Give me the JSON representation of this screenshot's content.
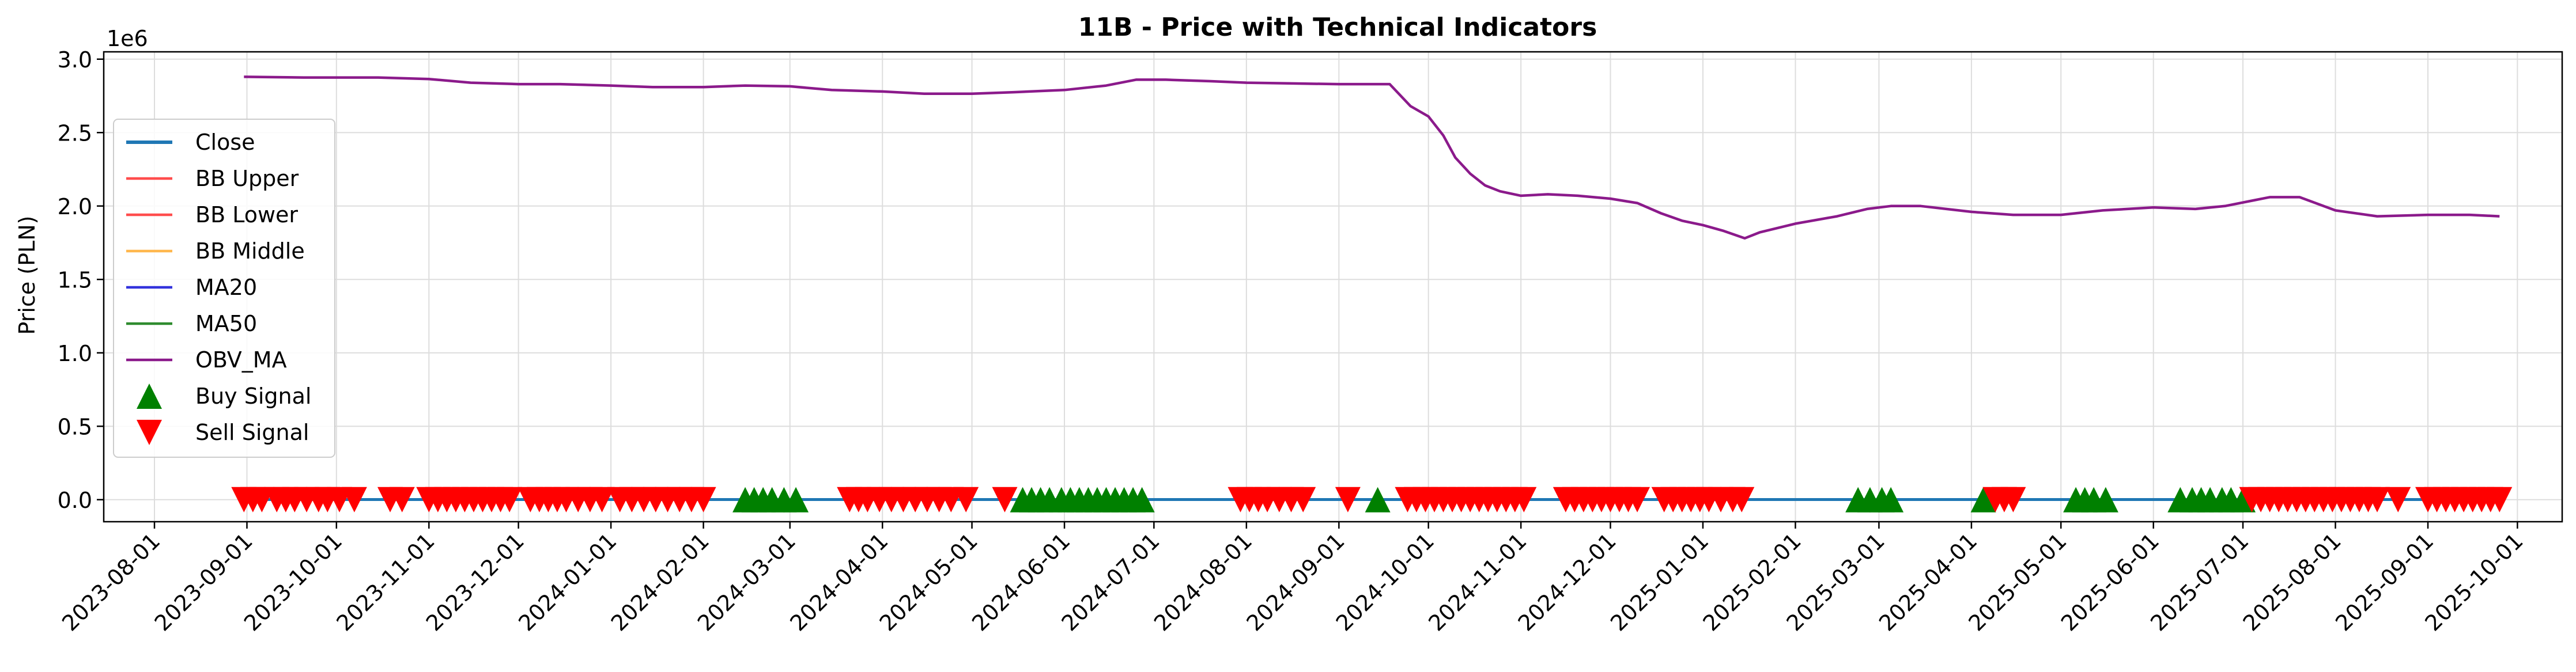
{
  "chart_data": {
    "type": "line",
    "title": "11B - Price with Technical Indicators",
    "ylabel": "Price (PLN)",
    "xlabel": "",
    "y_offset_label": "1e6",
    "ylim": [
      -0.15,
      3.05
    ],
    "xlim": [
      "2023-07-15",
      "2025-10-16"
    ],
    "y_ticks": [
      0.0,
      0.5,
      1.0,
      1.5,
      2.0,
      2.5,
      3.0
    ],
    "y_tick_labels": [
      "0.0",
      "0.5",
      "1.0",
      "1.5",
      "2.0",
      "2.5",
      "3.0"
    ],
    "x_tick_labels": [
      "2023-08-01",
      "2023-09-01",
      "2023-10-01",
      "2023-11-01",
      "2023-12-01",
      "2024-01-01",
      "2024-02-01",
      "2024-03-01",
      "2024-04-01",
      "2024-05-01",
      "2024-06-01",
      "2024-07-01",
      "2024-08-01",
      "2024-09-01",
      "2024-10-01",
      "2024-11-01",
      "2024-12-01",
      "2025-01-01",
      "2025-02-01",
      "2025-03-01",
      "2025-04-01",
      "2025-05-01",
      "2025-06-01",
      "2025-07-01",
      "2025-08-01",
      "2025-09-01",
      "2025-10-01"
    ],
    "grid": true,
    "legend_position": "center-left",
    "legend": [
      {
        "name": "Close",
        "color": "#1f77b4",
        "kind": "line"
      },
      {
        "name": "BB Upper",
        "color": "#ff4d4d",
        "kind": "line"
      },
      {
        "name": "BB Lower",
        "color": "#ff4d4d",
        "kind": "line"
      },
      {
        "name": "BB Middle",
        "color": "#ffb74d",
        "kind": "line"
      },
      {
        "name": "MA20",
        "color": "#3333dd",
        "kind": "line"
      },
      {
        "name": "MA50",
        "color": "#2e8b2e",
        "kind": "line"
      },
      {
        "name": "OBV_MA",
        "color": "#8b1a8b",
        "kind": "line"
      },
      {
        "name": "Buy Signal",
        "color": "#008000",
        "kind": "triangle-up"
      },
      {
        "name": "Sell Signal",
        "color": "#ff0000",
        "kind": "triangle-down"
      }
    ],
    "price_lines": {
      "x": [
        "2023-09-01",
        "2025-09-25"
      ],
      "y": [
        0.0012,
        0.0012
      ],
      "colors": [
        "#2e8b2e",
        "#1f77b4"
      ]
    },
    "series": [
      {
        "name": "OBV_MA",
        "color": "#8b1a8b",
        "x": [
          "2023-08-31",
          "2023-09-20",
          "2023-10-15",
          "2023-11-01",
          "2023-11-15",
          "2023-12-01",
          "2023-12-15",
          "2024-01-01",
          "2024-01-15",
          "2024-02-01",
          "2024-02-15",
          "2024-03-01",
          "2024-03-15",
          "2024-04-01",
          "2024-04-15",
          "2024-05-01",
          "2024-05-15",
          "2024-06-01",
          "2024-06-15",
          "2024-06-25",
          "2024-07-05",
          "2024-07-20",
          "2024-08-01",
          "2024-08-15",
          "2024-09-01",
          "2024-09-18",
          "2024-09-25",
          "2024-10-01",
          "2024-10-06",
          "2024-10-10",
          "2024-10-15",
          "2024-10-20",
          "2024-10-25",
          "2024-11-01",
          "2024-11-10",
          "2024-11-20",
          "2024-12-01",
          "2024-12-10",
          "2024-12-18",
          "2024-12-25",
          "2025-01-01",
          "2025-01-08",
          "2025-01-15",
          "2025-01-20",
          "2025-02-01",
          "2025-02-15",
          "2025-02-25",
          "2025-03-05",
          "2025-03-15",
          "2025-04-01",
          "2025-04-15",
          "2025-05-01",
          "2025-05-15",
          "2025-06-01",
          "2025-06-15",
          "2025-06-25",
          "2025-07-05",
          "2025-07-10",
          "2025-07-20",
          "2025-08-01",
          "2025-08-15",
          "2025-09-01",
          "2025-09-15",
          "2025-09-25"
        ],
        "y": [
          2.88,
          2.875,
          2.875,
          2.865,
          2.84,
          2.83,
          2.83,
          2.82,
          2.81,
          2.81,
          2.82,
          2.815,
          2.79,
          2.78,
          2.765,
          2.765,
          2.775,
          2.79,
          2.82,
          2.86,
          2.86,
          2.85,
          2.84,
          2.835,
          2.83,
          2.83,
          2.68,
          2.61,
          2.48,
          2.33,
          2.22,
          2.14,
          2.1,
          2.07,
          2.08,
          2.07,
          2.05,
          2.02,
          1.95,
          1.9,
          1.87,
          1.83,
          1.78,
          1.82,
          1.88,
          1.93,
          1.98,
          2.0,
          2.0,
          1.96,
          1.94,
          1.94,
          1.97,
          1.99,
          1.98,
          2.0,
          2.04,
          2.06,
          2.06,
          1.97,
          1.93,
          1.94,
          1.94,
          1.93
        ]
      }
    ],
    "buy_signals": [
      "2024-02-15",
      "2024-02-18",
      "2024-02-21",
      "2024-02-24",
      "2024-02-28",
      "2024-03-03",
      "2024-05-18",
      "2024-05-21",
      "2024-05-24",
      "2024-05-27",
      "2024-05-31",
      "2024-06-03",
      "2024-06-06",
      "2024-06-09",
      "2024-06-12",
      "2024-06-15",
      "2024-06-18",
      "2024-06-21",
      "2024-06-24",
      "2024-06-27",
      "2024-09-14",
      "2025-02-22",
      "2025-02-26",
      "2025-03-02",
      "2025-03-05",
      "2025-04-05",
      "2025-05-06",
      "2025-05-09",
      "2025-05-12",
      "2025-05-16",
      "2025-06-10",
      "2025-06-14",
      "2025-06-17",
      "2025-06-20",
      "2025-06-24",
      "2025-06-27",
      "2025-07-01"
    ],
    "sell_signals": [
      "2023-08-31",
      "2023-09-03",
      "2023-09-06",
      "2023-09-11",
      "2023-09-14",
      "2023-09-17",
      "2023-09-21",
      "2023-09-25",
      "2023-09-28",
      "2023-10-02",
      "2023-10-07",
      "2023-10-19",
      "2023-10-23",
      "2023-11-01",
      "2023-11-04",
      "2023-11-07",
      "2023-11-10",
      "2023-11-13",
      "2023-11-16",
      "2023-11-19",
      "2023-11-22",
      "2023-11-25",
      "2023-11-28",
      "2023-12-05",
      "2023-12-08",
      "2023-12-11",
      "2023-12-14",
      "2023-12-17",
      "2023-12-21",
      "2023-12-25",
      "2023-12-29",
      "2024-01-04",
      "2024-01-08",
      "2024-01-12",
      "2024-01-16",
      "2024-01-20",
      "2024-01-24",
      "2024-01-28",
      "2024-02-01",
      "2024-03-21",
      "2024-03-24",
      "2024-03-27",
      "2024-03-31",
      "2024-04-04",
      "2024-04-08",
      "2024-04-12",
      "2024-04-16",
      "2024-04-20",
      "2024-04-24",
      "2024-04-29",
      "2024-05-12",
      "2024-07-30",
      "2024-08-02",
      "2024-08-05",
      "2024-08-08",
      "2024-08-12",
      "2024-08-16",
      "2024-08-20",
      "2024-09-04",
      "2024-09-24",
      "2024-09-27",
      "2024-09-30",
      "2024-10-03",
      "2024-10-06",
      "2024-10-09",
      "2024-10-12",
      "2024-10-15",
      "2024-10-18",
      "2024-10-21",
      "2024-10-24",
      "2024-10-27",
      "2024-10-30",
      "2024-11-02",
      "2024-11-16",
      "2024-11-19",
      "2024-11-22",
      "2024-11-25",
      "2024-11-28",
      "2024-12-01",
      "2024-12-04",
      "2024-12-07",
      "2024-12-10",
      "2024-12-19",
      "2024-12-22",
      "2024-12-25",
      "2024-12-28",
      "2024-12-31",
      "2025-01-03",
      "2025-01-07",
      "2025-01-11",
      "2025-01-14",
      "2025-04-09",
      "2025-04-12",
      "2025-04-15",
      "2025-07-04",
      "2025-07-07",
      "2025-07-10",
      "2025-07-13",
      "2025-07-16",
      "2025-07-19",
      "2025-07-22",
      "2025-07-25",
      "2025-07-28",
      "2025-07-31",
      "2025-08-03",
      "2025-08-06",
      "2025-08-09",
      "2025-08-12",
      "2025-08-15",
      "2025-08-22",
      "2025-09-01",
      "2025-09-04",
      "2025-09-07",
      "2025-09-10",
      "2025-09-13",
      "2025-09-16",
      "2025-09-19",
      "2025-09-22",
      "2025-09-25"
    ]
  }
}
